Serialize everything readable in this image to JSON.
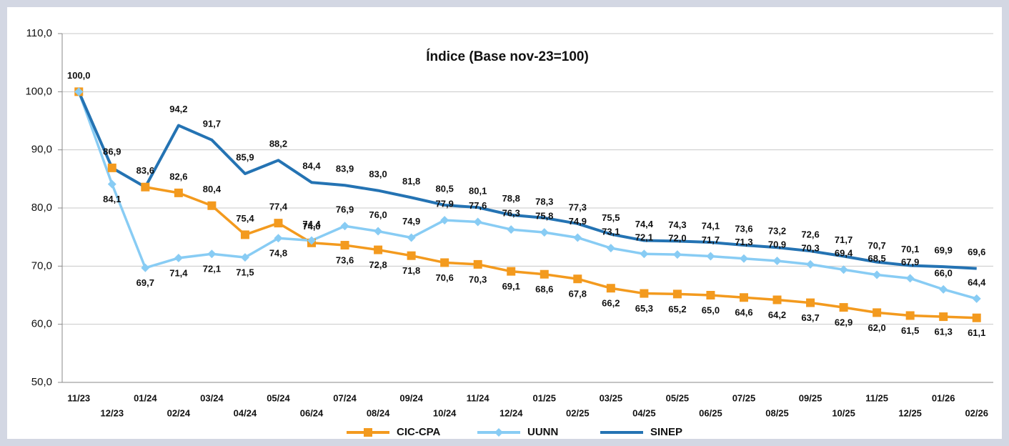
{
  "chart_data": {
    "type": "line",
    "title": "Índice (Base nov-23=100)",
    "categories": [
      "11/23",
      "12/23",
      "01/24",
      "02/24",
      "03/24",
      "04/24",
      "05/24",
      "06/24",
      "07/24",
      "08/24",
      "09/24",
      "10/24",
      "11/24",
      "12/24",
      "01/25",
      "02/25",
      "03/25",
      "04/25",
      "05/25",
      "06/25",
      "07/25",
      "08/25",
      "09/25",
      "10/25",
      "11/25",
      "12/25",
      "01/26",
      "02/26"
    ],
    "ylim": [
      50,
      110
    ],
    "yticks": [
      {
        "value": 50,
        "label": "50,0"
      },
      {
        "value": 60,
        "label": "60,0"
      },
      {
        "value": 70,
        "label": "70,0"
      },
      {
        "value": 80,
        "label": "80,0"
      },
      {
        "value": 90,
        "label": "90,0"
      },
      {
        "value": 100,
        "label": "100,0"
      },
      {
        "value": 110,
        "label": "110,0"
      }
    ],
    "grid": true,
    "series": [
      {
        "name": "CIC-CPA",
        "color": "#f39a1e",
        "marker": "square",
        "values": [
          100.0,
          86.9,
          83.6,
          82.6,
          80.4,
          75.4,
          77.4,
          74.0,
          73.6,
          72.8,
          71.8,
          70.6,
          70.3,
          69.1,
          68.6,
          67.8,
          66.2,
          65.3,
          65.2,
          65.0,
          64.6,
          64.2,
          63.7,
          62.9,
          62.0,
          61.5,
          61.3,
          61.1
        ],
        "value_labels": [
          null,
          null,
          null,
          "82,6",
          "80,4",
          "75,4",
          "77,4",
          "74,0",
          "73,6",
          "72,8",
          "71,8",
          "70,6",
          "70,3",
          "69,1",
          "68,6",
          "67,8",
          "66,2",
          "65,3",
          "65,2",
          "65,0",
          "64,6",
          "64,2",
          "63,7",
          "62,9",
          "62,0",
          "61,5",
          "61,3",
          "61,1"
        ]
      },
      {
        "name": "UUNN",
        "color": "#88ccf4",
        "marker": "diamond",
        "values": [
          100.0,
          84.1,
          69.7,
          71.4,
          72.1,
          71.5,
          74.8,
          74.4,
          76.9,
          76.0,
          74.9,
          77.9,
          77.6,
          76.3,
          75.8,
          74.9,
          73.1,
          72.1,
          72.0,
          71.7,
          71.3,
          70.9,
          70.3,
          69.4,
          68.5,
          67.9,
          66.0,
          64.4
        ],
        "value_labels": [
          null,
          "84,1",
          "69,7",
          "71,4",
          "72,1",
          "71,5",
          "74,8",
          "74,4",
          "76,9",
          "76,0",
          "74,9",
          "77,9",
          "77,6",
          "76,3",
          "75,8",
          "74,9",
          "73,1",
          "72,1",
          "72,0",
          "71,7",
          "71,3",
          "70,9",
          "70,3",
          "69,4",
          "68,5",
          "67,9",
          "66,0",
          "64,4"
        ]
      },
      {
        "name": "SINEP",
        "color": "#2473b3",
        "marker": "none",
        "values": [
          100.0,
          86.9,
          83.6,
          94.2,
          91.7,
          85.9,
          88.2,
          84.4,
          83.9,
          83.0,
          81.8,
          80.5,
          80.1,
          78.8,
          78.3,
          77.3,
          75.5,
          74.4,
          74.3,
          74.1,
          73.6,
          73.2,
          72.6,
          71.7,
          70.7,
          70.1,
          69.9,
          69.6
        ],
        "value_labels": [
          "100,0",
          "86,9",
          "83,6",
          "94,2",
          "91,7",
          "85,9",
          "88,2",
          "84,4",
          "83,9",
          "83,0",
          "81,8",
          "80,5",
          "80,1",
          "78,8",
          "78,3",
          "77,3",
          "75,5",
          "74,4",
          "74,3",
          "74,1",
          "73,6",
          "73,2",
          "72,6",
          "71,7",
          "70,7",
          "70,1",
          "69,9",
          "69,6"
        ]
      }
    ]
  }
}
